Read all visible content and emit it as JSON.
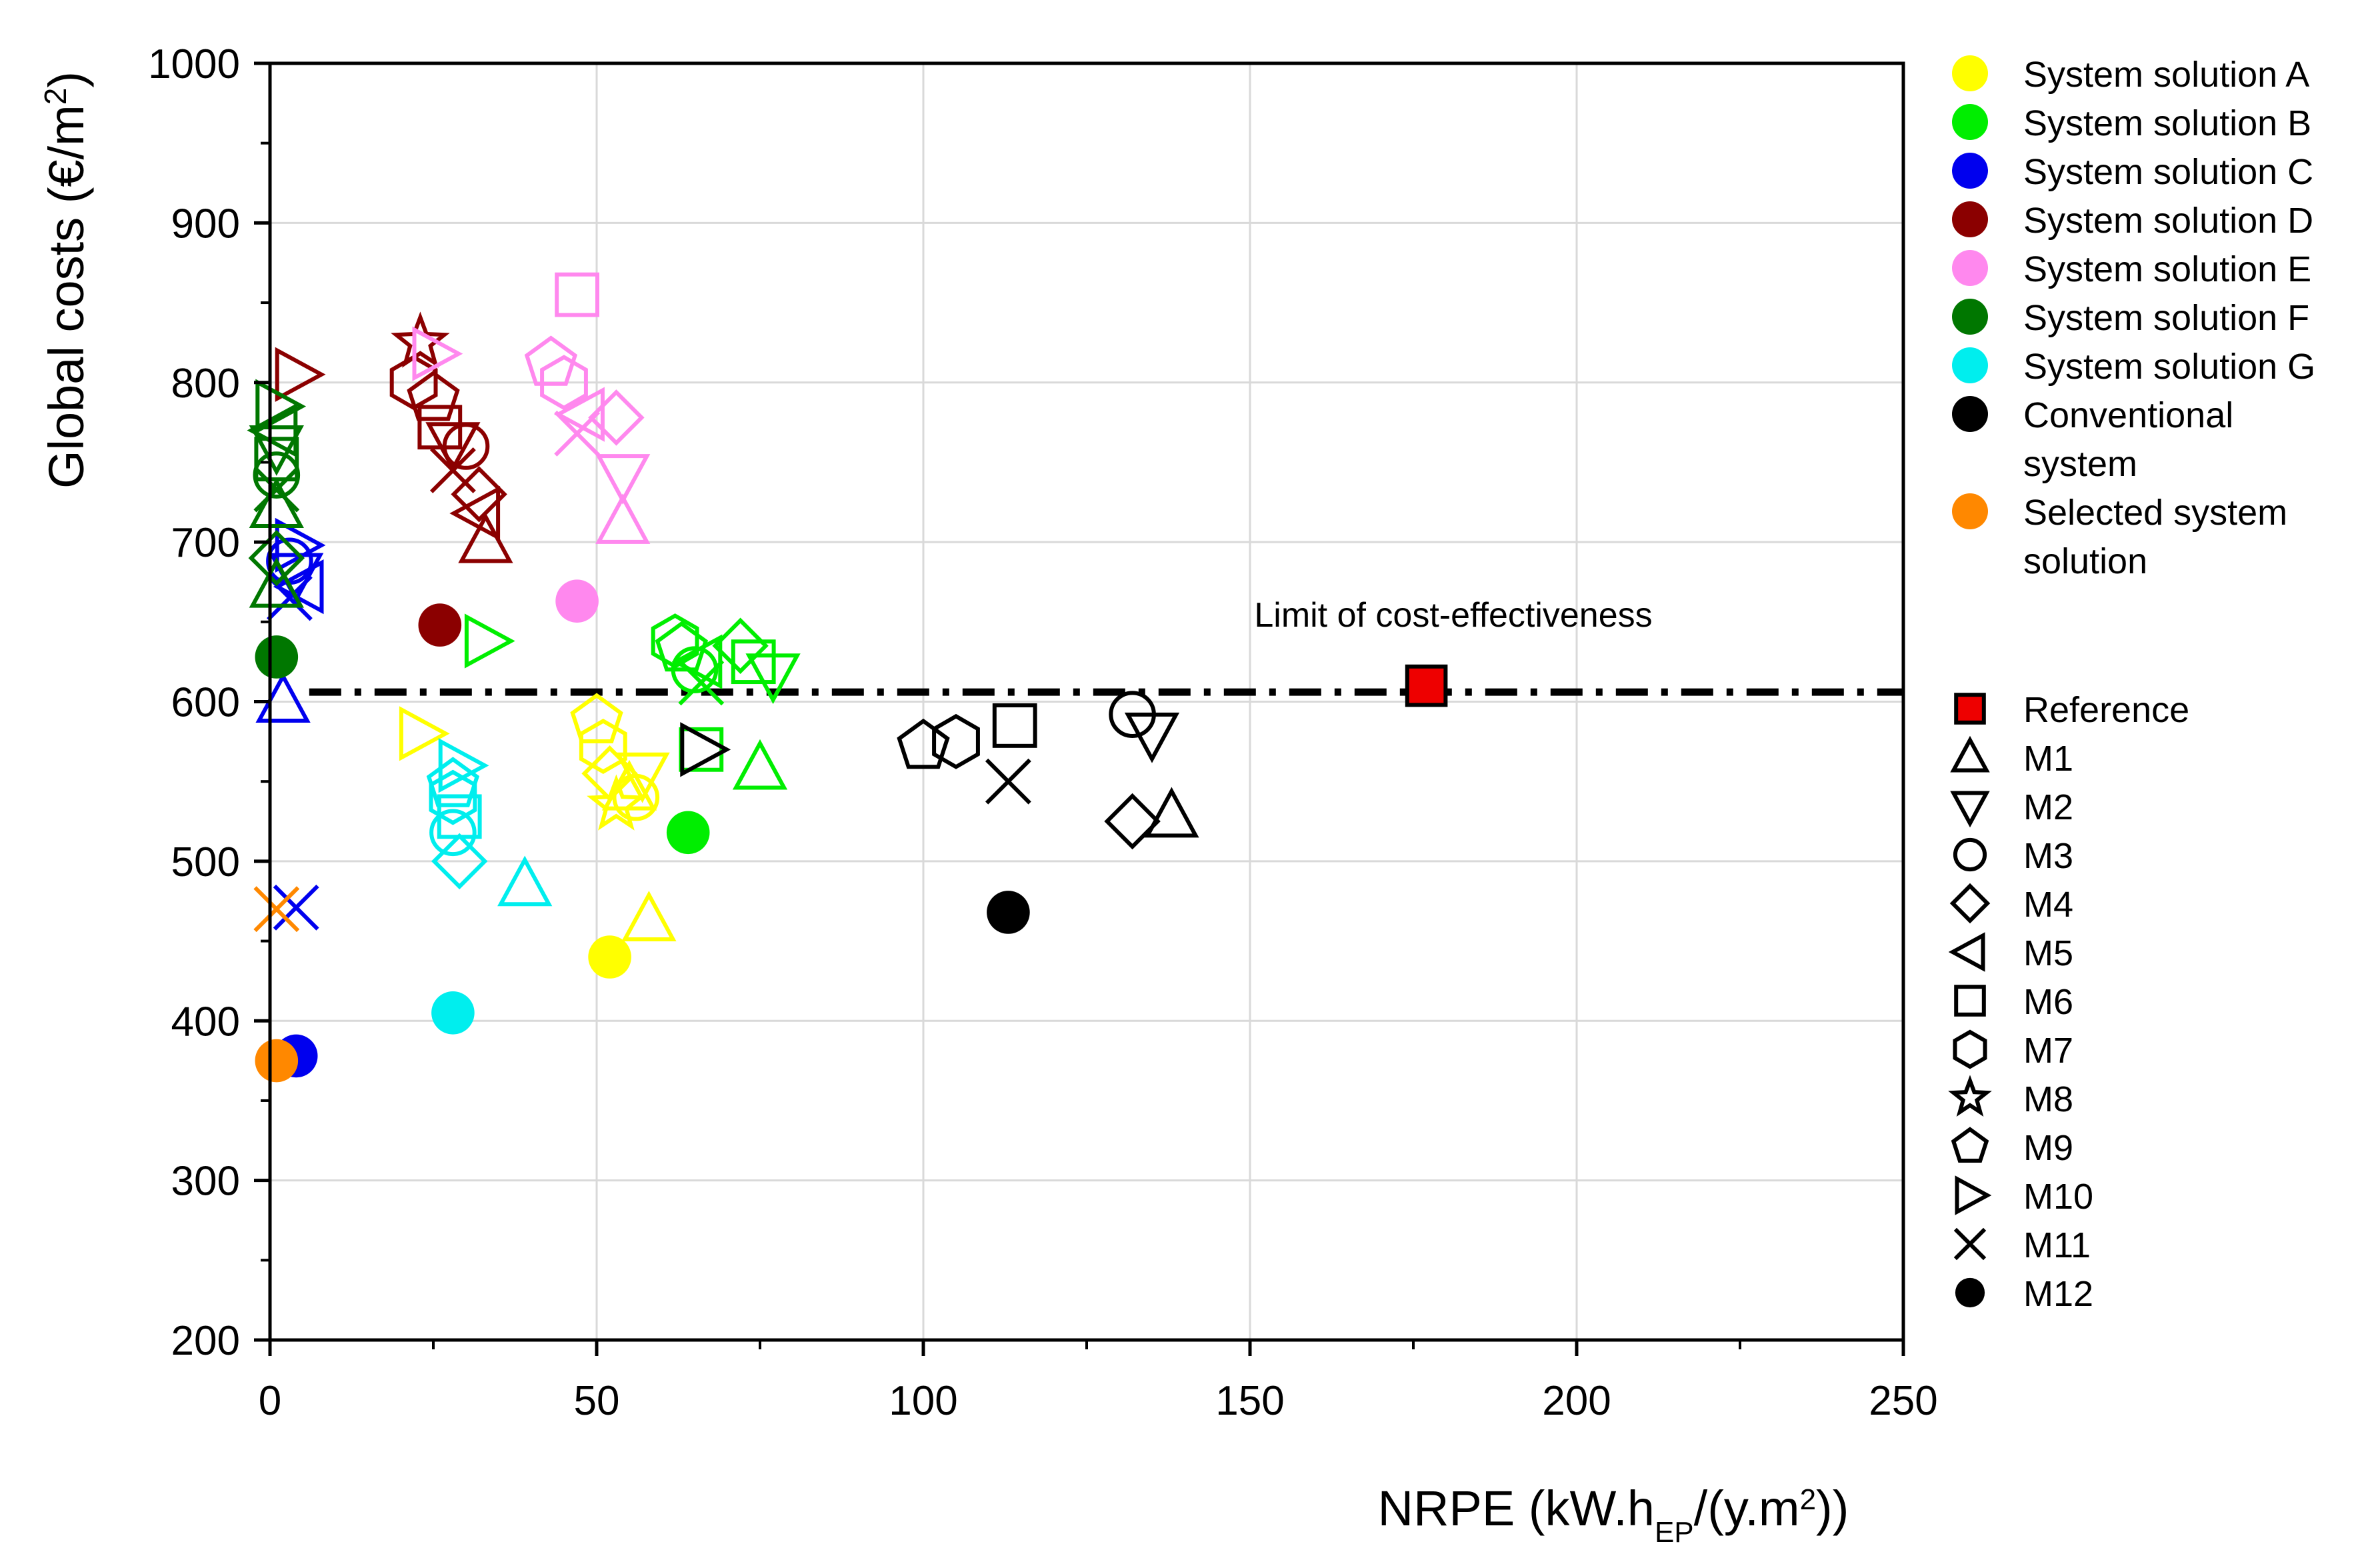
{
  "chart_data": {
    "type": "scatter",
    "xlabel": {
      "main": "NRPE (kW.h",
      "sub": "EP",
      "mid": "/(y.m",
      "sup": "2",
      "end": "))"
    },
    "ylabel": {
      "main": "Global costs (€/m",
      "sup": "2",
      "end": ")"
    },
    "xlim": [
      0,
      250
    ],
    "ylim": [
      200,
      1000
    ],
    "xticks": [
      0,
      50,
      100,
      150,
      200,
      250
    ],
    "yticks": [
      200,
      300,
      400,
      500,
      600,
      700,
      800,
      900,
      1000
    ],
    "grid": true,
    "reference_line": {
      "y": 606,
      "label": "Limit of cost-effectiveness",
      "style": "dash-dot"
    },
    "series": [
      {
        "name": "System solution A",
        "color": "#ffff00",
        "points": [
          [
            23,
            580,
            "M10"
          ],
          [
            50,
            588,
            "M9"
          ],
          [
            51,
            572,
            "M7"
          ],
          [
            52,
            555,
            "M4"
          ],
          [
            55,
            545,
            "M1"
          ],
          [
            53,
            535,
            "M8"
          ],
          [
            56,
            540,
            "M3"
          ],
          [
            57,
            555,
            "M2"
          ],
          [
            58,
            463,
            "M1"
          ],
          [
            52,
            440,
            "M12"
          ]
        ]
      },
      {
        "name": "System solution B",
        "color": "#00ee00",
        "points": [
          [
            62,
            638,
            "M7"
          ],
          [
            63,
            633,
            "M9"
          ],
          [
            66,
            625,
            "M5"
          ],
          [
            65,
            620,
            "M3"
          ],
          [
            66,
            612,
            "M11"
          ],
          [
            72,
            635,
            "M4"
          ],
          [
            74,
            625,
            "M6"
          ],
          [
            77,
            617,
            "M2"
          ],
          [
            33,
            638,
            "M10"
          ],
          [
            66,
            570,
            "M6"
          ],
          [
            75,
            558,
            "M1"
          ],
          [
            64,
            518,
            "M12"
          ]
        ]
      },
      {
        "name": "System solution C",
        "color": "#0000ee",
        "points": [
          [
            4,
            698,
            "M10"
          ],
          [
            3,
            688,
            "M3"
          ],
          [
            4,
            680,
            "M2"
          ],
          [
            5,
            672,
            "M5"
          ],
          [
            3,
            665,
            "M11"
          ],
          [
            2,
            600,
            "M1"
          ],
          [
            4,
            471,
            "M11"
          ],
          [
            4,
            378,
            "M12"
          ]
        ]
      },
      {
        "name": "System solution D",
        "color": "#8b0000",
        "points": [
          [
            23,
            825,
            "M8"
          ],
          [
            22,
            800,
            "M7"
          ],
          [
            25,
            790,
            "M9"
          ],
          [
            26,
            772,
            "M6"
          ],
          [
            28,
            762,
            "M2"
          ],
          [
            30,
            760,
            "M3"
          ],
          [
            28,
            745,
            "M11"
          ],
          [
            32,
            730,
            "M4"
          ],
          [
            32,
            718,
            "M5"
          ],
          [
            33,
            700,
            "M1"
          ],
          [
            4,
            805,
            "M10"
          ],
          [
            26,
            648,
            "M12"
          ]
        ]
      },
      {
        "name": "System solution E",
        "color": "#ff88ee",
        "points": [
          [
            47,
            855,
            "M6"
          ],
          [
            25,
            818,
            "M10"
          ],
          [
            43,
            812,
            "M9"
          ],
          [
            45,
            800,
            "M7"
          ],
          [
            48,
            780,
            "M5"
          ],
          [
            53,
            778,
            "M4"
          ],
          [
            47,
            768,
            "M11"
          ],
          [
            54,
            742,
            "M2"
          ],
          [
            54,
            712,
            "M1"
          ],
          [
            47,
            663,
            "M12"
          ]
        ]
      },
      {
        "name": "System solution F",
        "color": "#007700",
        "points": [
          [
            1,
            785,
            "M10"
          ],
          [
            1,
            770,
            "M5"
          ],
          [
            1,
            760,
            "M2"
          ],
          [
            1,
            752,
            "M6"
          ],
          [
            1,
            742,
            "M3"
          ],
          [
            1,
            733,
            "M11"
          ],
          [
            1,
            722,
            "M1"
          ],
          [
            1,
            690,
            "M4"
          ],
          [
            1,
            672,
            "M1"
          ],
          [
            1,
            628,
            "M12"
          ]
        ]
      },
      {
        "name": "System solution G",
        "color": "#00eeee",
        "points": [
          [
            29,
            560,
            "M10"
          ],
          [
            28,
            548,
            "M9"
          ],
          [
            28,
            540,
            "M7"
          ],
          [
            29,
            528,
            "M6"
          ],
          [
            28,
            518,
            "M3"
          ],
          [
            29,
            500,
            "M4"
          ],
          [
            39,
            485,
            "M1"
          ],
          [
            28,
            405,
            "M12"
          ]
        ]
      },
      {
        "name": "Conventional system",
        "color": "#000000",
        "points": [
          [
            100,
            572,
            "M9"
          ],
          [
            105,
            575,
            "M7"
          ],
          [
            114,
            585,
            "M6"
          ],
          [
            113,
            550,
            "M11"
          ],
          [
            66,
            570,
            "M10"
          ],
          [
            132,
            592,
            "M3"
          ],
          [
            135,
            580,
            "M2"
          ],
          [
            132,
            525,
            "M4"
          ],
          [
            138,
            528,
            "M1"
          ],
          [
            113,
            468,
            "M12"
          ]
        ]
      },
      {
        "name": "Selected system solution",
        "color": "#ff8800",
        "points": [
          [
            1,
            470,
            "M11"
          ],
          [
            1,
            375,
            "M12"
          ]
        ]
      }
    ],
    "reference_point": {
      "name": "Reference",
      "x": 177,
      "y": 610,
      "color": "#ee0000"
    },
    "legend_colors": [
      {
        "lines": [
          "System solution A"
        ],
        "color": "#ffff00"
      },
      {
        "lines": [
          "System solution B"
        ],
        "color": "#00ee00"
      },
      {
        "lines": [
          "System solution C"
        ],
        "color": "#0000ee"
      },
      {
        "lines": [
          "System solution D"
        ],
        "color": "#8b0000"
      },
      {
        "lines": [
          "System solution E"
        ],
        "color": "#ff88ee"
      },
      {
        "lines": [
          "System solution F"
        ],
        "color": "#007700"
      },
      {
        "lines": [
          "System solution G"
        ],
        "color": "#00eeee"
      },
      {
        "lines": [
          "Conventional",
          "system"
        ],
        "color": "#000000"
      },
      {
        "lines": [
          "Selected system",
          "solution"
        ],
        "color": "#ff8800"
      }
    ],
    "legend_markers": [
      {
        "label": "Reference",
        "marker": "Ref"
      },
      {
        "label": "M1",
        "marker": "M1"
      },
      {
        "label": "M2",
        "marker": "M2"
      },
      {
        "label": "M3",
        "marker": "M3"
      },
      {
        "label": "M4",
        "marker": "M4"
      },
      {
        "label": "M5",
        "marker": "M5"
      },
      {
        "label": "M6",
        "marker": "M6"
      },
      {
        "label": "M7",
        "marker": "M7"
      },
      {
        "label": "M8",
        "marker": "M8"
      },
      {
        "label": "M9",
        "marker": "M9"
      },
      {
        "label": "M10",
        "marker": "M10"
      },
      {
        "label": "M11",
        "marker": "M11"
      },
      {
        "label": "M12",
        "marker": "M12"
      }
    ],
    "legend_placement": "right"
  }
}
